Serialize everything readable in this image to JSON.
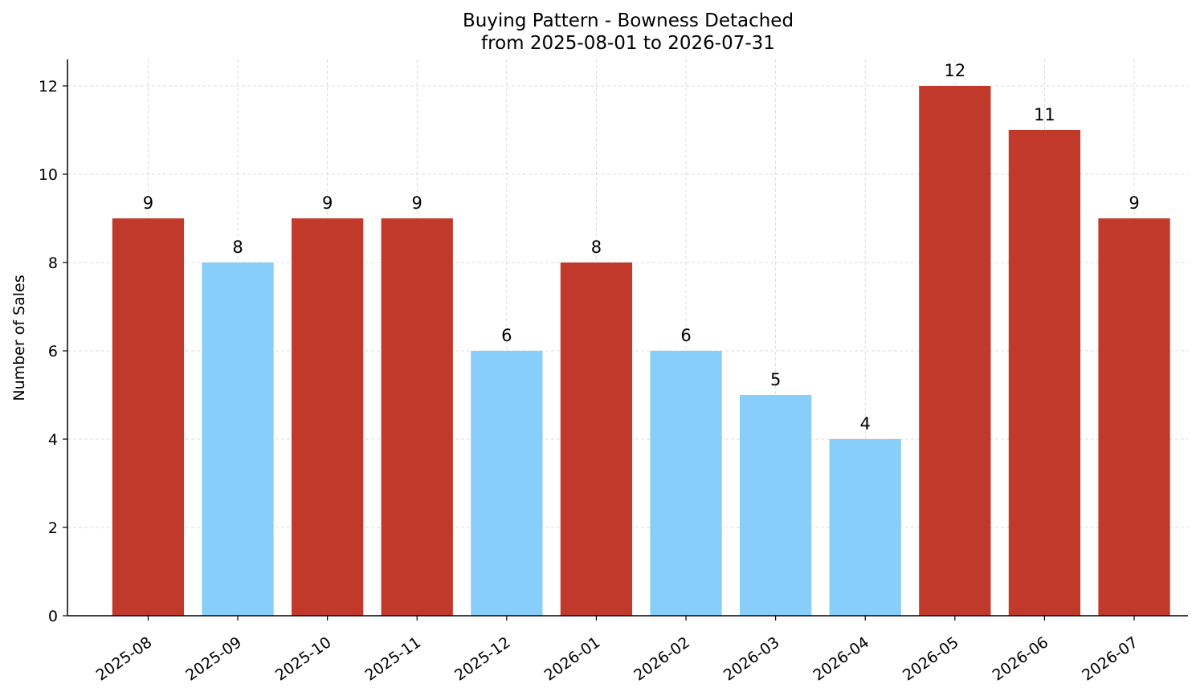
{
  "chart_data": {
    "type": "bar",
    "title": "Buying Pattern - Bowness Detached",
    "subtitle": "from 2025-08-01 to 2026-07-31",
    "xlabel": "",
    "ylabel": "Number of Sales",
    "categories": [
      "2025-08",
      "2025-09",
      "2025-10",
      "2025-11",
      "2025-12",
      "2026-01",
      "2026-02",
      "2026-03",
      "2026-04",
      "2026-05",
      "2026-06",
      "2026-07"
    ],
    "values": [
      9,
      8,
      9,
      9,
      6,
      8,
      6,
      5,
      4,
      12,
      11,
      9
    ],
    "bar_colors": [
      "#c0392b",
      "#87cefa",
      "#c0392b",
      "#c0392b",
      "#87cefa",
      "#c0392b",
      "#87cefa",
      "#87cefa",
      "#87cefa",
      "#c0392b",
      "#c0392b",
      "#c0392b"
    ],
    "yticks": [
      0,
      2,
      4,
      6,
      8,
      10,
      12
    ],
    "ylim": [
      0,
      12.6
    ],
    "grid": true,
    "data_labels": true,
    "legend": "none",
    "colors": {
      "high": "#c0392b",
      "low": "#87cefa",
      "grid": "#d3d3d3",
      "axis": "#000000"
    }
  }
}
